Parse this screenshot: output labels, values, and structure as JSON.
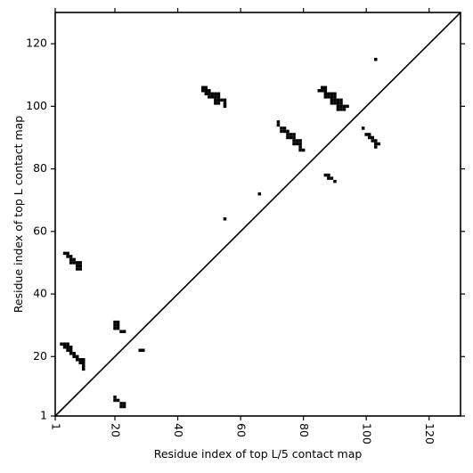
{
  "chart_data": {
    "type": "scatter",
    "title": "",
    "xlabel": "Residue index of top L/5 contact map",
    "ylabel": "Residue index of top L contact map",
    "xlim": [
      1,
      130
    ],
    "ylim": [
      1,
      130
    ],
    "x_ticks": [
      1,
      20,
      40,
      60,
      80,
      100,
      120
    ],
    "y_ticks": [
      1,
      20,
      40,
      60,
      80,
      100,
      120
    ],
    "x_tick_labels": [
      "1",
      "20",
      "40",
      "60",
      "80",
      "100",
      "120"
    ],
    "y_tick_labels": [
      "1",
      "20",
      "40",
      "60",
      "80",
      "100",
      "120"
    ],
    "x_tick_rotation": -90,
    "grid": false,
    "legend": "none",
    "diagonal": true,
    "marker": "square",
    "colors": {
      "points": "#000000",
      "axes": "#000000",
      "background": "#ffffff"
    },
    "series": [
      {
        "region": "lower-triangle",
        "points": [
          [
            20,
            7
          ],
          [
            20,
            6
          ],
          [
            21,
            6
          ],
          [
            22,
            5
          ],
          [
            23,
            5
          ],
          [
            22,
            4
          ],
          [
            23,
            4
          ],
          [
            10,
            16
          ],
          [
            10,
            17
          ],
          [
            9,
            18
          ],
          [
            10,
            18
          ],
          [
            8,
            19
          ],
          [
            9,
            19
          ],
          [
            10,
            19
          ],
          [
            7,
            20
          ],
          [
            8,
            20
          ],
          [
            6,
            21
          ],
          [
            7,
            21
          ],
          [
            5,
            22
          ],
          [
            6,
            22
          ],
          [
            4,
            23
          ],
          [
            5,
            23
          ],
          [
            6,
            23
          ],
          [
            3,
            24
          ],
          [
            4,
            24
          ],
          [
            5,
            24
          ],
          [
            28,
            22
          ],
          [
            29,
            22
          ],
          [
            20,
            29
          ],
          [
            21,
            29
          ],
          [
            22,
            28
          ],
          [
            23,
            28
          ],
          [
            20,
            30
          ],
          [
            21,
            30
          ],
          [
            20,
            31
          ],
          [
            21,
            31
          ],
          [
            8,
            48
          ],
          [
            9,
            48
          ],
          [
            8,
            49
          ],
          [
            9,
            49
          ],
          [
            8,
            50
          ],
          [
            9,
            50
          ],
          [
            6,
            50
          ],
          [
            7,
            50
          ],
          [
            6,
            51
          ],
          [
            7,
            51
          ],
          [
            5,
            52
          ],
          [
            6,
            52
          ],
          [
            4,
            53
          ],
          [
            5,
            53
          ],
          [
            55,
            64
          ],
          [
            66,
            72
          ]
        ]
      },
      {
        "region": "upper-triangle",
        "points": [
          [
            48,
            106
          ],
          [
            49,
            106
          ],
          [
            48,
            105
          ],
          [
            49,
            105
          ],
          [
            50,
            105
          ],
          [
            49,
            104
          ],
          [
            50,
            104
          ],
          [
            51,
            104
          ],
          [
            52,
            104
          ],
          [
            53,
            104
          ],
          [
            50,
            103
          ],
          [
            51,
            103
          ],
          [
            52,
            103
          ],
          [
            53,
            103
          ],
          [
            52,
            102
          ],
          [
            53,
            102
          ],
          [
            54,
            102
          ],
          [
            55,
            102
          ],
          [
            52,
            101
          ],
          [
            53,
            101
          ],
          [
            55,
            101
          ],
          [
            55,
            100
          ],
          [
            72,
            95
          ],
          [
            72,
            94
          ],
          [
            73,
            93
          ],
          [
            74,
            93
          ],
          [
            73,
            92
          ],
          [
            74,
            92
          ],
          [
            75,
            92
          ],
          [
            75,
            91
          ],
          [
            76,
            91
          ],
          [
            77,
            91
          ],
          [
            75,
            90
          ],
          [
            76,
            90
          ],
          [
            77,
            90
          ],
          [
            77,
            89
          ],
          [
            78,
            89
          ],
          [
            79,
            89
          ],
          [
            77,
            88
          ],
          [
            78,
            88
          ],
          [
            79,
            88
          ],
          [
            79,
            87
          ],
          [
            79,
            86
          ],
          [
            80,
            86
          ],
          [
            86,
            106
          ],
          [
            87,
            106
          ],
          [
            85,
            105
          ],
          [
            86,
            105
          ],
          [
            87,
            105
          ],
          [
            87,
            104
          ],
          [
            88,
            104
          ],
          [
            89,
            104
          ],
          [
            90,
            104
          ],
          [
            87,
            103
          ],
          [
            88,
            103
          ],
          [
            89,
            103
          ],
          [
            90,
            103
          ],
          [
            89,
            102
          ],
          [
            90,
            102
          ],
          [
            91,
            102
          ],
          [
            92,
            102
          ],
          [
            89,
            101
          ],
          [
            90,
            101
          ],
          [
            91,
            101
          ],
          [
            92,
            101
          ],
          [
            91,
            100
          ],
          [
            92,
            100
          ],
          [
            93,
            100
          ],
          [
            94,
            100
          ],
          [
            91,
            99
          ],
          [
            92,
            99
          ],
          [
            93,
            99
          ],
          [
            103,
            115
          ],
          [
            99,
            93
          ],
          [
            100,
            91
          ],
          [
            101,
            91
          ],
          [
            101,
            90
          ],
          [
            102,
            90
          ],
          [
            102,
            89
          ],
          [
            103,
            89
          ],
          [
            103,
            88
          ],
          [
            104,
            88
          ],
          [
            103,
            87
          ],
          [
            87,
            78
          ],
          [
            88,
            78
          ],
          [
            88,
            77
          ],
          [
            89,
            77
          ],
          [
            90,
            76
          ]
        ]
      }
    ]
  }
}
